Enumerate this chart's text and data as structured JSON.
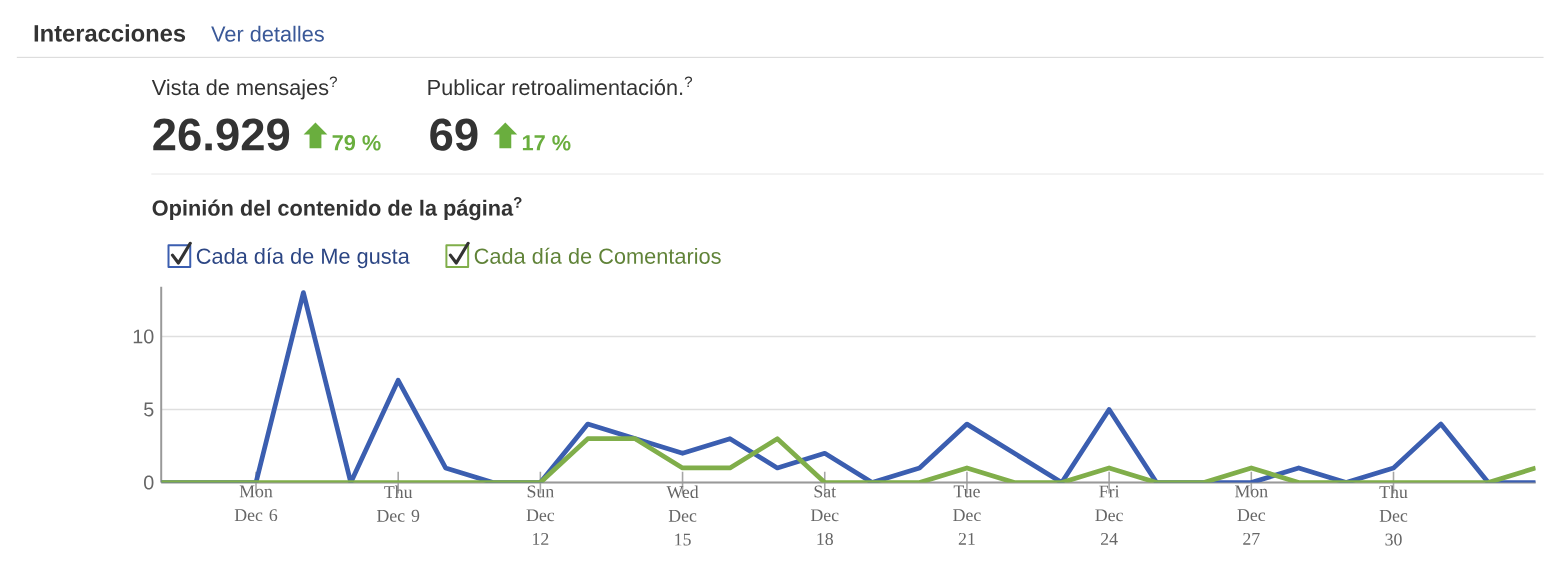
{
  "chart_data": {
    "type": "line",
    "title": "Interacciones",
    "subtitle": "Opinión del contenido de la página$^{?}$",
    "annotations": [
      "Ver detalles",
      "Vista de mensajes$^{?}$",
      "26.929",
      "79 %",
      "Publicar retroalimentación.$^{?}$",
      "69",
      "17 %"
    ],
    "categories": [
      null,
      null,
      "Mon Dec 6",
      null,
      null,
      "Thu Dec 9",
      null,
      null,
      "Sun Dec 12",
      null,
      null,
      "Wed Dec 15",
      null,
      null,
      "Sat Dec 18",
      null,
      null,
      "Tue Dec 21",
      null,
      null,
      "Fri Dec 24",
      null,
      null,
      "Mon Dec 27",
      null,
      null,
      "Thu Dec 30",
      null,
      null,
      null
    ],
    "series": [
      {
        "name": "Cada día de Me gusta",
        "color": "#3b5eb0",
        "values": [
          0,
          0,
          0,
          13,
          0,
          7,
          1,
          0,
          0,
          4,
          3,
          2,
          3,
          1,
          2,
          0,
          1,
          4,
          2,
          0,
          5,
          0,
          0,
          0,
          1,
          0,
          1,
          4,
          0,
          0
        ]
      },
      {
        "name": "Cada día de Comentarios",
        "color": "#80ae4a",
        "values": [
          0,
          0,
          0,
          0,
          0,
          0,
          0,
          0,
          0,
          3,
          3,
          1,
          1,
          3,
          0,
          0,
          0,
          1,
          0,
          0,
          1,
          0,
          0,
          1,
          0,
          0,
          0,
          0,
          0,
          1
        ]
      }
    ],
    "ylim": [
      0,
      13.4
    ],
    "yticks": [
      0,
      5,
      10
    ],
    "grid": "y",
    "legend": "top left"
  }
}
